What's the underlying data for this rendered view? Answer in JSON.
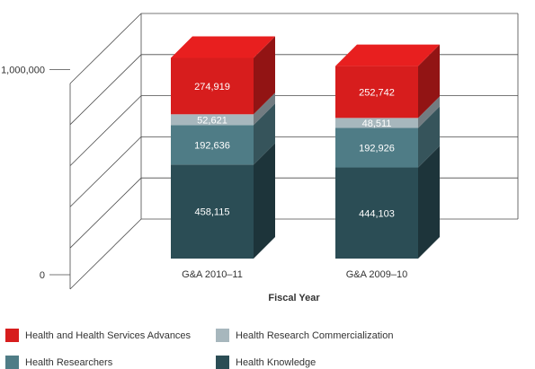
{
  "chart_data": {
    "type": "bar",
    "stacked": true,
    "three_d": true,
    "xlabel": "Fiscal Year",
    "ylabel": "",
    "title": "",
    "ylim": [
      0,
      1200000
    ],
    "yticks": [
      0,
      1000000
    ],
    "ytick_labels": [
      "0",
      "1,000,000"
    ],
    "grid": true,
    "legend_position": "bottom",
    "categories": [
      "G&A 2010–11",
      "G&A 2009–10"
    ],
    "series": [
      {
        "name": "Health Knowledge",
        "values": [
          458115,
          444103
        ],
        "labels": [
          "458,115",
          "444,103"
        ],
        "color": "#2b4d55"
      },
      {
        "name": "Health Researchers",
        "values": [
          192636,
          192926
        ],
        "labels": [
          "192,636",
          "192,926"
        ],
        "color": "#4f7c86"
      },
      {
        "name": "Health Research Commercialization",
        "values": [
          52621,
          48511
        ],
        "labels": [
          "52,621",
          "48,511"
        ],
        "color": "#a7b7bd"
      },
      {
        "name": "Health and Health Services Advances",
        "values": [
          274919,
          252742
        ],
        "labels": [
          "274,919",
          "252,742"
        ],
        "color": "#d71d1d"
      }
    ],
    "legend_order": [
      "Health and Health Services Advances",
      "Health Research Commercialization",
      "Health Researchers",
      "Health Knowledge"
    ]
  }
}
